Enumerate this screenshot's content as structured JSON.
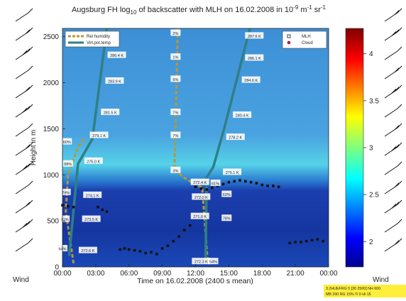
{
  "chart_data": {
    "type": "line",
    "title": [
      "Augsburg FH log",
      "10",
      " of backscatter with MLH on 16.02.2008 in 10",
      "-9",
      " m",
      "-1",
      " sr",
      "-1"
    ],
    "xlabel": "Time on 16.02.2008 (2400 s mean)",
    "ylabel": "Height in m",
    "xlim": [
      0,
      24
    ],
    "xticks": [
      {
        "value": 0,
        "label": "00:00"
      },
      {
        "value": 3,
        "label": "03:00"
      },
      {
        "value": 6,
        "label": "06:00"
      },
      {
        "value": 9,
        "label": "09:00"
      },
      {
        "value": 12,
        "label": "12:00"
      },
      {
        "value": 15,
        "label": "15:00"
      },
      {
        "value": 18,
        "label": "18:00"
      },
      {
        "value": 21,
        "label": "21:00"
      },
      {
        "value": 24,
        "label": "00:00"
      }
    ],
    "ylim": [
      0,
      2590
    ],
    "yticks": [
      0,
      500,
      1000,
      1500,
      2000,
      2500
    ],
    "colorbar": {
      "lim": [
        1.73,
        4.27
      ],
      "ticks": [
        2,
        2.5,
        3,
        3.5,
        4
      ]
    },
    "series": [
      {
        "name": "Rel humidity",
        "color": "#b8963a",
        "style": "dashed",
        "x": [
          1.0,
          0.3,
          0.5,
          1.4,
          2.0,
          null,
          10.4,
          10.1,
          11.2,
          12.6,
          13.1
        ],
        "values": [
          40,
          600,
          1000,
          1300,
          1400,
          null,
          2590,
          1050,
          950,
          860,
          40
        ]
      },
      {
        "name": "Virt.pot.temp",
        "color": "#2f7f86",
        "style": "solid",
        "x": [
          0.6,
          1.4,
          2.7,
          4.0,
          null,
          12.9,
          13.0,
          13.6,
          14.6,
          16.9
        ],
        "values": [
          120,
          1120,
          1390,
          2590,
          null,
          40,
          970,
          1085,
          1510,
          2590
        ]
      },
      {
        "name": "MLH",
        "color": "#111111",
        "style": "markers",
        "x": [
          0.0,
          0.5,
          1.0,
          3.2,
          3.6,
          4.0,
          5.2,
          5.6,
          6.0,
          6.5,
          7.0,
          7.5,
          8.0,
          8.5,
          9.0,
          9.5,
          10.0,
          10.5,
          11.0,
          11.5,
          12.0,
          12.5,
          13.0,
          13.5,
          14.0,
          14.5,
          15.0,
          15.5,
          16.0,
          16.5,
          17.0,
          17.5,
          18.0,
          18.5,
          19.0,
          19.5,
          20.5,
          21.0,
          21.5,
          22.0,
          22.5,
          23.0,
          23.5
        ],
        "values": [
          670,
          660,
          650,
          650,
          620,
          600,
          190,
          200,
          190,
          180,
          170,
          150,
          160,
          140,
          200,
          230,
          280,
          330,
          400,
          450,
          870,
          850,
          840,
          860,
          880,
          900,
          920,
          930,
          940,
          930,
          920,
          910,
          890,
          880,
          880,
          870,
          260,
          270,
          270,
          280,
          290,
          300,
          280
        ]
      },
      {
        "name": "Cloud",
        "color": "#b0144a",
        "style": "dots",
        "x": [],
        "values": []
      }
    ],
    "annotations": [
      {
        "text": "286.4 K",
        "x": 4.9,
        "y": 2300
      },
      {
        "text": "283.9 K",
        "x": 4.7,
        "y": 2020
      },
      {
        "text": "281.5 K",
        "x": 4.3,
        "y": 1680
      },
      {
        "text": "279.1 K",
        "x": 3.3,
        "y": 1430
      },
      {
        "text": "275.0 K",
        "x": 2.8,
        "y": 1150
      },
      {
        "text": "274.1 K",
        "x": 2.7,
        "y": 780
      },
      {
        "text": "273.5 K",
        "x": 2.6,
        "y": 520
      },
      {
        "text": "272.6 K",
        "x": 2.3,
        "y": 180
      },
      {
        "text": "287.6 K",
        "x": 17.3,
        "y": 2510
      },
      {
        "text": "286.1 K",
        "x": 17.3,
        "y": 2270
      },
      {
        "text": "284.6 K",
        "x": 17.0,
        "y": 2030
      },
      {
        "text": "280.4 K",
        "x": 16.2,
        "y": 1650
      },
      {
        "text": "278.2 K",
        "x": 15.6,
        "y": 1410
      },
      {
        "text": "275.1 K",
        "x": 15.3,
        "y": 1030
      },
      {
        "text": "272.4 K",
        "x": 12.4,
        "y": 920
      },
      {
        "text": "272.0 K",
        "x": 12.5,
        "y": 760
      },
      {
        "text": "271.6 K",
        "x": 12.4,
        "y": 550
      },
      {
        "text": "272.3 K",
        "x": 12.5,
        "y": 60
      },
      {
        "text": "60%",
        "x": 0.4,
        "y": 1360
      },
      {
        "text": "88%",
        "x": 0.5,
        "y": 1120
      },
      {
        "text": "79%",
        "x": 0.3,
        "y": 810
      },
      {
        "text": "71%",
        "x": 0.2,
        "y": 520
      },
      {
        "text": "64%",
        "x": 0.0,
        "y": 200
      },
      {
        "text": "2%",
        "x": 10.2,
        "y": 2540
      },
      {
        "text": "1%",
        "x": 10.2,
        "y": 2280
      },
      {
        "text": "6%",
        "x": 10.2,
        "y": 2040
      },
      {
        "text": "7%",
        "x": 10.2,
        "y": 1680
      },
      {
        "text": "7%",
        "x": 10.2,
        "y": 1430
      },
      {
        "text": "3%",
        "x": 10.2,
        "y": 1050
      },
      {
        "text": "61%",
        "x": 13.8,
        "y": 910
      },
      {
        "text": "63%",
        "x": 14.8,
        "y": 790
      },
      {
        "text": "78%",
        "x": 14.8,
        "y": 530
      },
      {
        "text": "54%",
        "x": 13.6,
        "y": 60
      }
    ],
    "wind_label": "Wind",
    "info_box": [
      "3.2HUEFRG 5 [30 2500] NH 600",
      "MB 200 RG 15% Ti 0 Hi 15"
    ]
  }
}
